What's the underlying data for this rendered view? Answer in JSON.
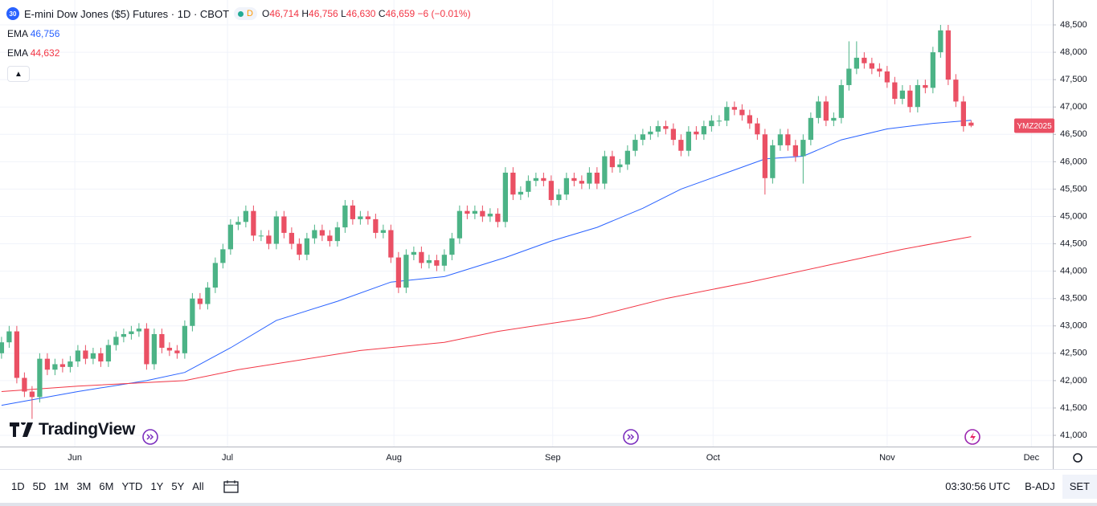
{
  "chart_data": {
    "type": "candlestick",
    "title": "E-mini Dow Jones ($5) Futures · 1D · CBOT",
    "symbol_badge": "30",
    "status_badge": "D",
    "ohlc_text": [
      {
        "label": "O",
        "value": "46,714"
      },
      {
        "label": "H",
        "value": "46,756"
      },
      {
        "label": "L",
        "value": "46,630"
      },
      {
        "label": "C",
        "value": "46,659"
      }
    ],
    "change_text": "−6 (−0.01%)",
    "price_tag": "YMZ2025",
    "up_color": "#4cb386",
    "down_color": "#ea5064",
    "open": [
      42500,
      42700,
      42900,
      42050,
      41800,
      41700,
      42400,
      42200,
      42300,
      42250,
      42350,
      42550,
      42400,
      42500,
      42350,
      42650,
      42800,
      42850,
      42900,
      42950,
      42300,
      42850,
      42600,
      42550,
      42500,
      43000,
      43500,
      43400,
      43700,
      44150,
      44400,
      44850,
      44900,
      45100,
      44650,
      44650,
      44500,
      45000,
      44700,
      44500,
      44300,
      44600,
      44750,
      44650,
      44550,
      44800,
      45200,
      44950,
      45000,
      44950,
      44700,
      44750,
      44250,
      43700,
      44300,
      44350,
      44150,
      44200,
      44100,
      44300,
      44600,
      45100,
      45050,
      45100,
      45000,
      45050,
      44900,
      45800,
      45400,
      45450,
      45650,
      45700,
      45650,
      45300,
      45400,
      45700,
      45650,
      45600,
      45800,
      45600,
      46100,
      45900,
      45950,
      46200,
      46400,
      46500,
      46550,
      46650,
      46600,
      46400,
      46200,
      46550,
      46500,
      46650,
      46750,
      46750,
      47000,
      46950,
      46850,
      46700,
      46500,
      45700,
      46300,
      46500,
      46300,
      46100,
      46400,
      46800,
      47100,
      46750,
      46800,
      47400,
      47700,
      47900,
      47800,
      47700,
      47650,
      47450,
      47150,
      47300,
      47000,
      47400,
      47350,
      48000,
      48400,
      47500,
      47100,
      46714
    ],
    "high": [
      42800,
      43000,
      43000,
      42150,
      41900,
      42500,
      42500,
      42400,
      42400,
      42450,
      42650,
      42650,
      42600,
      42600,
      42750,
      42900,
      42950,
      43000,
      43050,
      43050,
      42950,
      42950,
      42700,
      42650,
      43100,
      43600,
      43600,
      43800,
      44250,
      44500,
      44950,
      45000,
      45200,
      45200,
      44750,
      44750,
      45100,
      45100,
      44800,
      44600,
      44700,
      44850,
      44850,
      44750,
      44900,
      45300,
      45300,
      45100,
      45100,
      45050,
      44850,
      44850,
      44350,
      44400,
      44450,
      44450,
      44300,
      44300,
      44400,
      44700,
      45200,
      45200,
      45200,
      45200,
      45150,
      45150,
      45900,
      45900,
      45550,
      45750,
      45800,
      45800,
      45750,
      45500,
      45800,
      45800,
      45750,
      45900,
      45900,
      46200,
      46200,
      46050,
      46300,
      46500,
      46600,
      46650,
      46750,
      46750,
      46700,
      46500,
      46650,
      46650,
      46750,
      46850,
      46850,
      47100,
      47100,
      47050,
      46950,
      46800,
      46600,
      46400,
      46600,
      46600,
      46400,
      46500,
      46900,
      47200,
      47200,
      46900,
      47500,
      48200,
      48200,
      48000,
      47900,
      47800,
      47750,
      47550,
      47400,
      47400,
      47500,
      47500,
      48100,
      48500,
      48500,
      47600,
      47200,
      46756
    ],
    "low": [
      42400,
      42600,
      41950,
      41700,
      41300,
      41600,
      42100,
      42100,
      42150,
      42150,
      42250,
      42300,
      42300,
      42250,
      42250,
      42550,
      42700,
      42750,
      42800,
      42200,
      42200,
      42500,
      42450,
      42400,
      42400,
      42900,
      43300,
      43300,
      43600,
      44050,
      44300,
      44750,
      44800,
      44550,
      44550,
      44400,
      44400,
      44600,
      44400,
      44200,
      44200,
      44500,
      44550,
      44450,
      44450,
      44700,
      44850,
      44850,
      44850,
      44600,
      44600,
      44150,
      43600,
      43600,
      44200,
      44050,
      44050,
      44000,
      44000,
      44200,
      44500,
      44950,
      44950,
      44900,
      44900,
      44800,
      44800,
      45300,
      45300,
      45350,
      45550,
      45550,
      45200,
      45200,
      45300,
      45550,
      45500,
      45500,
      45500,
      45500,
      45800,
      45800,
      45850,
      46100,
      46300,
      46400,
      46450,
      46500,
      46300,
      46100,
      46100,
      46400,
      46400,
      46550,
      46650,
      46650,
      46850,
      46750,
      46600,
      46400,
      45400,
      45600,
      46200,
      46200,
      46000,
      45600,
      46300,
      46700,
      46650,
      46650,
      46700,
      47300,
      47600,
      47700,
      47600,
      47550,
      47350,
      47050,
      47050,
      46900,
      46900,
      47250,
      47250,
      47900,
      47400,
      47000,
      46550,
      46630
    ],
    "close": [
      42700,
      42900,
      42050,
      41800,
      41700,
      42400,
      42200,
      42300,
      42250,
      42350,
      42550,
      42400,
      42500,
      42350,
      42650,
      42800,
      42850,
      42900,
      42950,
      42300,
      42850,
      42600,
      42550,
      42500,
      43000,
      43500,
      43400,
      43700,
      44150,
      44400,
      44850,
      44900,
      45100,
      44650,
      44650,
      44500,
      45000,
      44700,
      44500,
      44300,
      44600,
      44750,
      44650,
      44550,
      44800,
      45200,
      44950,
      45000,
      44950,
      44700,
      44750,
      44250,
      43700,
      44300,
      44350,
      44150,
      44200,
      44100,
      44300,
      44600,
      45100,
      45050,
      45100,
      45000,
      45050,
      44900,
      45800,
      45400,
      45450,
      45650,
      45700,
      45650,
      45300,
      45400,
      45700,
      45650,
      45600,
      45800,
      45600,
      46100,
      45900,
      45950,
      46200,
      46400,
      46500,
      46550,
      46650,
      46600,
      46400,
      46200,
      46550,
      46500,
      46650,
      46750,
      46750,
      47000,
      46950,
      46850,
      46700,
      46500,
      45700,
      46300,
      46500,
      46300,
      46100,
      46400,
      46800,
      47100,
      46750,
      46800,
      47400,
      47700,
      47900,
      47800,
      47700,
      47650,
      47450,
      47150,
      47300,
      47000,
      47400,
      47350,
      48000,
      48400,
      47500,
      47100,
      46650,
      46659
    ],
    "series": [
      {
        "name": "EMA",
        "value_label": "46,756",
        "color": "#2962ff",
        "x": [
          0,
          10,
          19,
          24,
          30,
          36,
          44,
          51,
          58,
          66,
          72,
          78,
          84,
          89,
          95,
          100,
          105,
          110,
          116,
          122,
          127
        ],
        "values": [
          41550,
          41800,
          42000,
          42150,
          42600,
          43100,
          43450,
          43800,
          43900,
          44250,
          44550,
          44800,
          45150,
          45500,
          45800,
          46050,
          46100,
          46400,
          46600,
          46700,
          46756
        ]
      },
      {
        "name": "EMA",
        "value_label": "44,632",
        "color": "#f23645",
        "x": [
          0,
          10,
          24,
          31,
          47,
          58,
          65,
          77,
          87,
          98,
          108,
          118,
          127
        ],
        "values": [
          41800,
          41900,
          42000,
          42200,
          42550,
          42700,
          42900,
          43150,
          43500,
          43800,
          44100,
          44400,
          44632
        ]
      }
    ],
    "xlim": [
      -0.2,
      137.7
    ],
    "xticks": [
      {
        "value": 9.6,
        "label": "Jun"
      },
      {
        "value": 29.6,
        "label": "Jul"
      },
      {
        "value": 51.4,
        "label": "Aug"
      },
      {
        "value": 72.2,
        "label": "Sep"
      },
      {
        "value": 93.2,
        "label": "Oct"
      },
      {
        "value": 116,
        "label": "Nov"
      },
      {
        "value": 134.9,
        "label": "Dec"
      }
    ],
    "ylim": [
      40795,
      48955
    ],
    "yticks": [
      {
        "value": 41000,
        "label": "41,000"
      },
      {
        "value": 41500,
        "label": "41,500"
      },
      {
        "value": 42000,
        "label": "42,000"
      },
      {
        "value": 42500,
        "label": "42,500"
      },
      {
        "value": 43000,
        "label": "43,000"
      },
      {
        "value": 43500,
        "label": "43,500"
      },
      {
        "value": 44000,
        "label": "44,000"
      },
      {
        "value": 44500,
        "label": "44,500"
      },
      {
        "value": 45000,
        "label": "45,000"
      },
      {
        "value": 45500,
        "label": "45,500"
      },
      {
        "value": 46000,
        "label": "46,000"
      },
      {
        "value": 46500,
        "label": "46,500"
      },
      {
        "value": 47000,
        "label": "47,000"
      },
      {
        "value": 47500,
        "label": "47,500"
      },
      {
        "value": 48000,
        "label": "48,000"
      },
      {
        "value": 48500,
        "label": "48,500"
      }
    ],
    "grid": true
  },
  "brand": "TradingView",
  "toolbar": {
    "ranges": [
      "1D",
      "5D",
      "1M",
      "3M",
      "6M",
      "YTD",
      "1Y",
      "5Y",
      "All"
    ],
    "clock": "03:30:56 UTC",
    "adjust": "B-ADJ",
    "session": "SET"
  }
}
